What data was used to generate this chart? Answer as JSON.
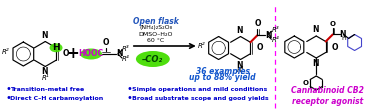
{
  "background_color": "#ffffff",
  "divider_color": "#ff00ff",
  "bullet_color": "#0000cd",
  "bullet_points_left": [
    "Transition-metal free",
    "Direct C–H carbamoylation"
  ],
  "bullet_points_right": [
    "Simple operations and mild conditions",
    "Broad substrate scope and good yields"
  ],
  "right_label": "Cannabinoid CB2\nreceptor agonist",
  "right_label_color": "#cc00cc",
  "green_color": "#44dd00",
  "red_bond_color": "#cc0000",
  "blue_text_color": "#1155cc",
  "italic_blue": "#1155cc",
  "open_flask_italic": "#2255bb"
}
